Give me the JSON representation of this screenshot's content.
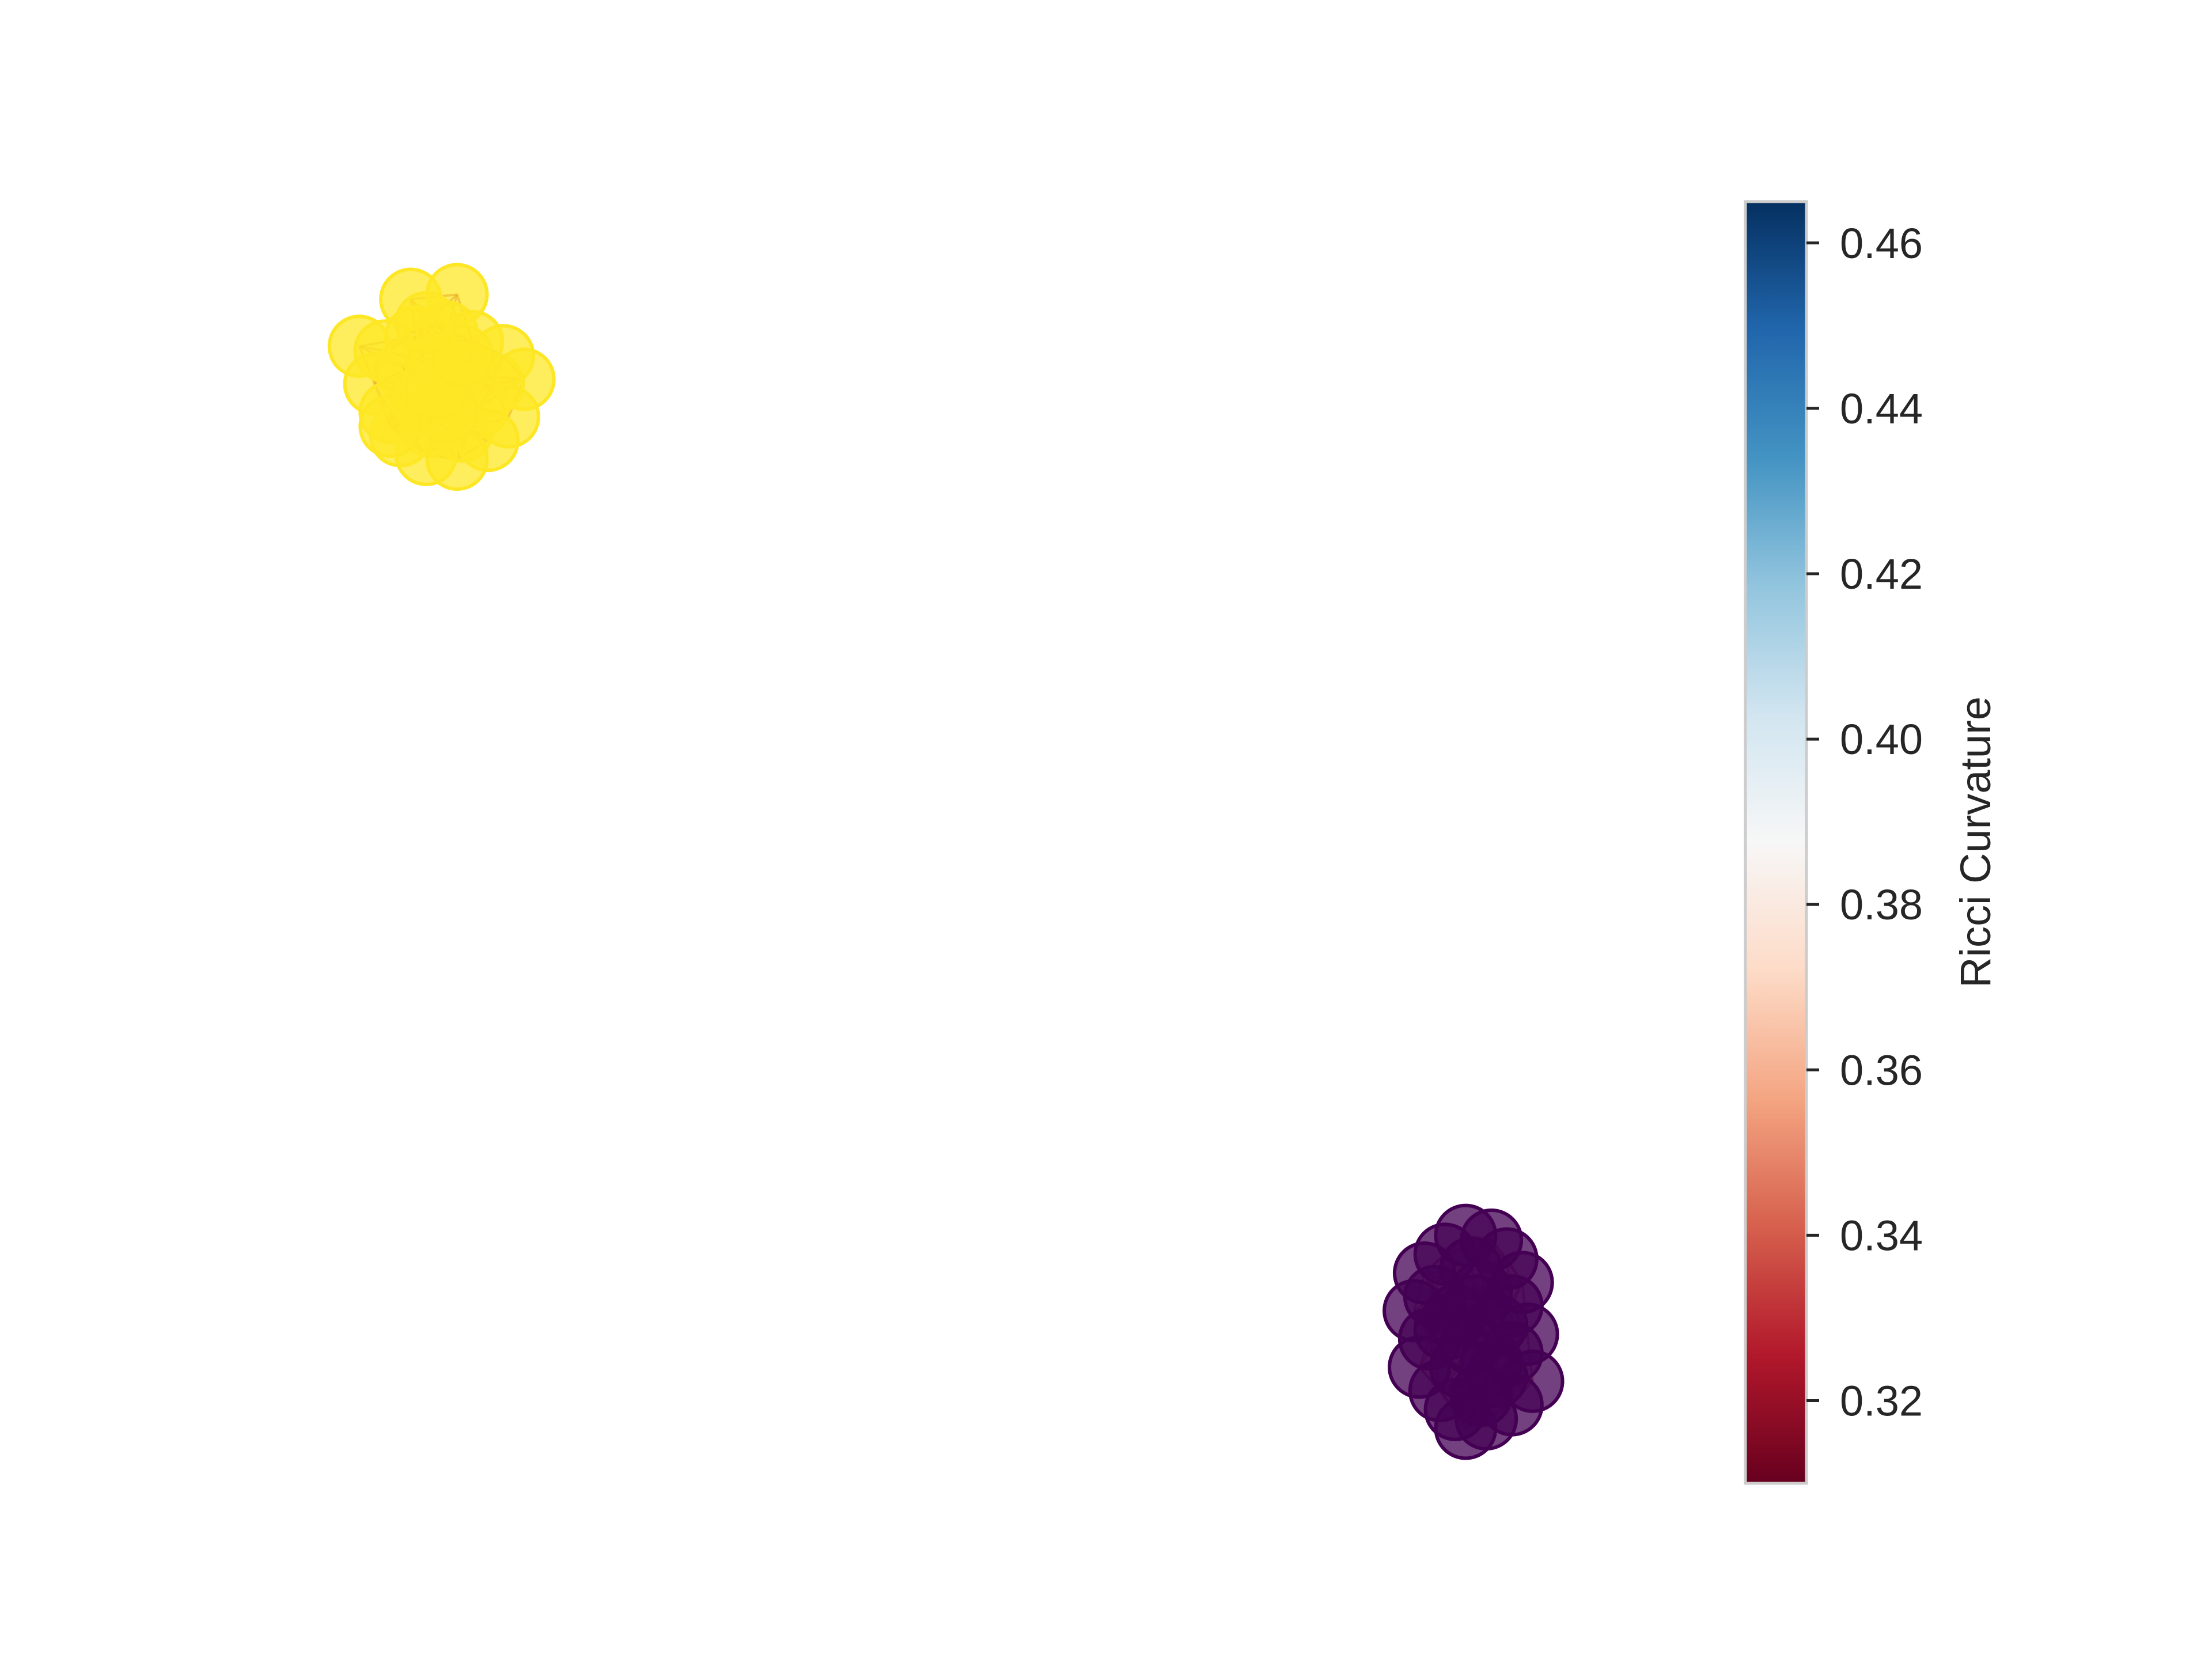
{
  "chart_data": {
    "type": "scatter",
    "description_note": "",
    "title": "",
    "xlabel": "",
    "ylabel": "",
    "axes_visible": false,
    "grid": false,
    "clusters": [
      {
        "color": "#fde725",
        "opacity": 0.75,
        "center": [
          -1.0,
          1.0
        ],
        "points": [
          [
            -1.06,
            1.17
          ],
          [
            -0.97,
            1.18
          ],
          [
            -1.16,
            1.07
          ],
          [
            -1.11,
            1.06
          ],
          [
            -1.05,
            1.09
          ],
          [
            -0.99,
            1.1
          ],
          [
            -0.94,
            1.08
          ],
          [
            -0.88,
            1.05
          ],
          [
            -1.13,
            0.99
          ],
          [
            -1.07,
            1.02
          ],
          [
            -1.01,
            1.03
          ],
          [
            -0.95,
            1.01
          ],
          [
            -0.9,
            0.99
          ],
          [
            -0.84,
            1.0
          ],
          [
            -1.1,
            0.93
          ],
          [
            -1.04,
            0.96
          ],
          [
            -0.98,
            0.97
          ],
          [
            -0.93,
            0.94
          ],
          [
            -0.87,
            0.92
          ],
          [
            -1.08,
            0.88
          ],
          [
            -1.02,
            0.9
          ],
          [
            -0.96,
            0.89
          ],
          [
            -0.91,
            0.87
          ],
          [
            -1.03,
            0.84
          ],
          [
            -0.97,
            0.83
          ],
          [
            -0.99,
            0.93
          ],
          [
            -1.01,
            0.98
          ],
          [
            -0.96,
            1.05
          ],
          [
            -1.03,
            1.12
          ],
          [
            -1.1,
            0.9
          ]
        ]
      },
      {
        "color": "#440154",
        "opacity": 0.75,
        "center": [
          1.0,
          -1.0
        ],
        "points": [
          [
            0.99,
            -0.82
          ],
          [
            1.04,
            -0.83
          ],
          [
            0.95,
            -0.86
          ],
          [
            1.07,
            -0.87
          ],
          [
            0.91,
            -0.9
          ],
          [
            1.0,
            -0.89
          ],
          [
            1.1,
            -0.92
          ],
          [
            0.93,
            -0.95
          ],
          [
            1.02,
            -0.94
          ],
          [
            1.08,
            -0.97
          ],
          [
            0.89,
            -0.98
          ],
          [
            0.97,
            -0.99
          ],
          [
            1.05,
            -1.01
          ],
          [
            1.11,
            -1.03
          ],
          [
            0.92,
            -1.04
          ],
          [
            1.0,
            -1.05
          ],
          [
            1.08,
            -1.07
          ],
          [
            0.9,
            -1.1
          ],
          [
            0.98,
            -1.1
          ],
          [
            1.05,
            -1.12
          ],
          [
            1.12,
            -1.13
          ],
          [
            0.94,
            -1.15
          ],
          [
            1.02,
            -1.16
          ],
          [
            1.08,
            -1.18
          ],
          [
            0.97,
            -1.19
          ],
          [
            1.03,
            -1.21
          ],
          [
            0.99,
            -1.23
          ],
          [
            1.01,
            -0.97
          ],
          [
            0.95,
            -1.02
          ],
          [
            1.04,
            -1.09
          ]
        ]
      }
    ],
    "edges_colored_by": "Ricci Curvature",
    "colorbar": {
      "label": "Ricci Curvature",
      "colormap": "RdBu",
      "min": 0.31,
      "max": 0.465,
      "ticks": [
        0.32,
        0.34,
        0.36,
        0.38,
        0.4,
        0.42,
        0.44,
        0.46
      ],
      "tick_labels": [
        "0.32",
        "0.34",
        "0.36",
        "0.38",
        "0.40",
        "0.42",
        "0.44",
        "0.46"
      ],
      "colors": [
        "#67001f",
        "#b2182b",
        "#d6604d",
        "#f4a582",
        "#fddbc7",
        "#f7f7f7",
        "#d1e5f0",
        "#92c5de",
        "#4393c3",
        "#2166ac",
        "#053061"
      ]
    }
  }
}
